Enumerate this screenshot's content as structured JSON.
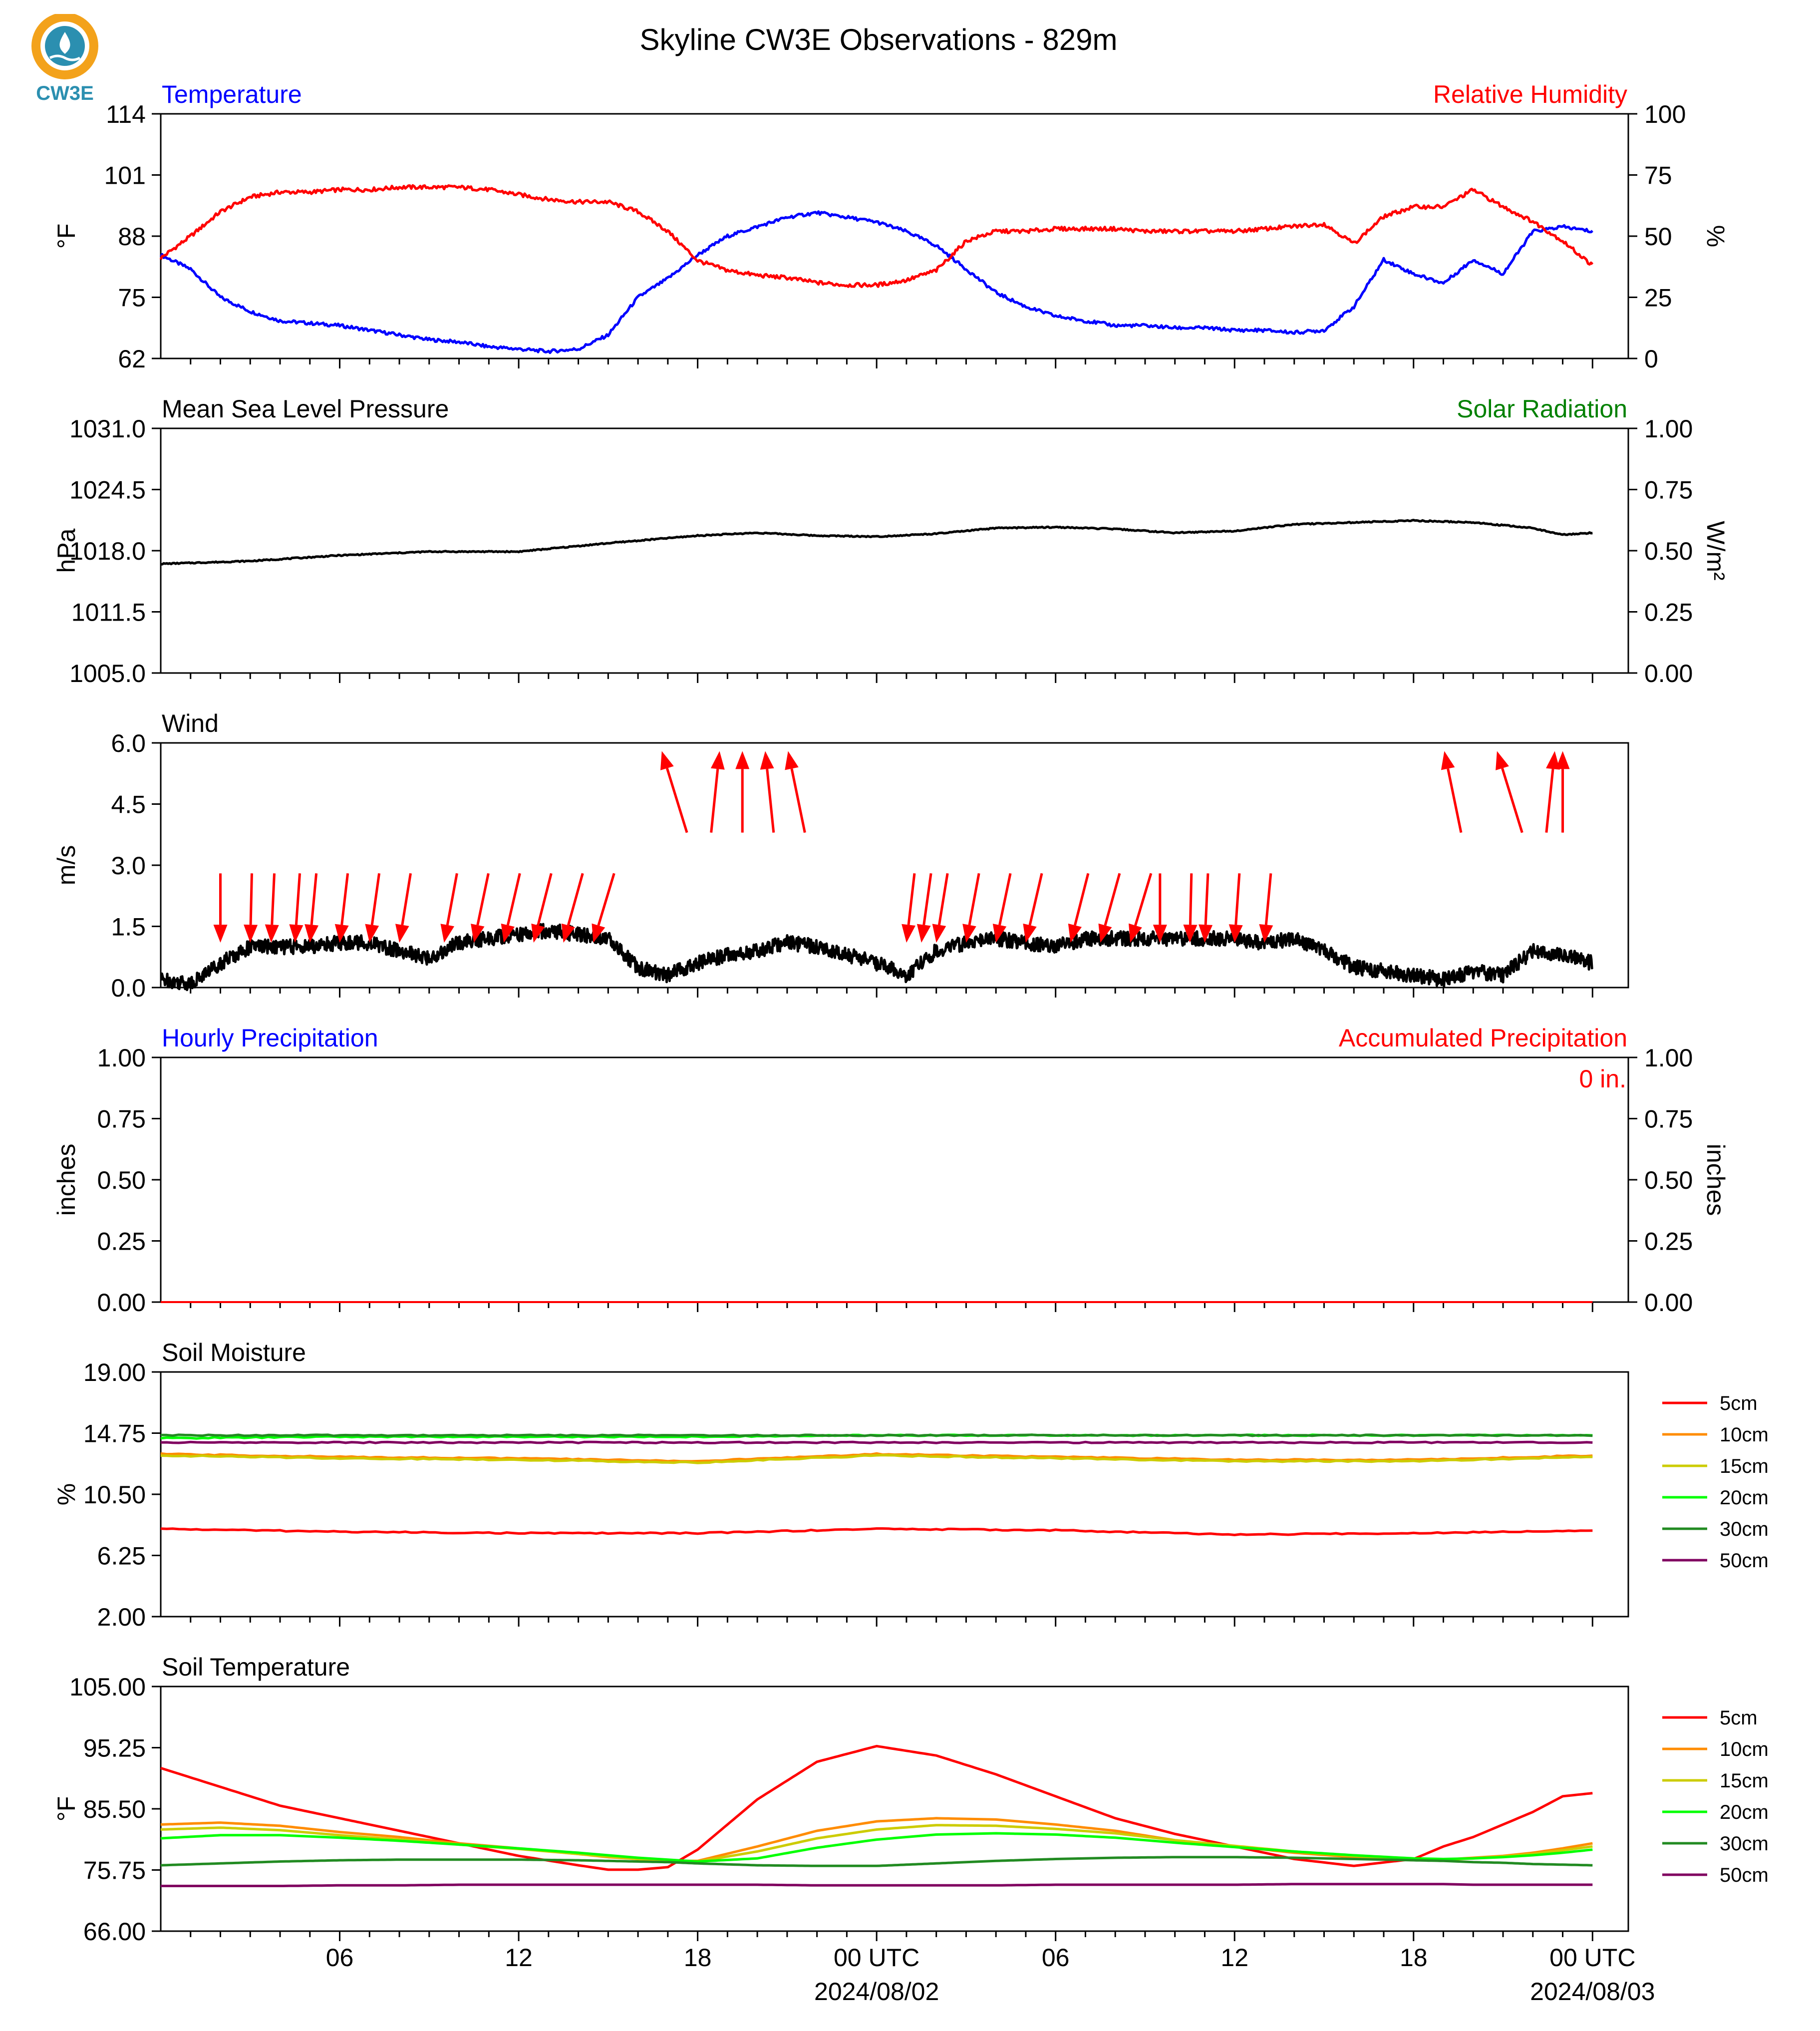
{
  "page": {
    "title": "Skyline CW3E Observations - 829m",
    "logo_text": "CW3E"
  },
  "colors": {
    "blue": "#0000ff",
    "red": "#ff0000",
    "green": "#008000",
    "black": "#000000",
    "logo_orange": "#f3a21b",
    "logo_teal": "#2b8fb0"
  },
  "time_axis": {
    "tick_labels": [
      "06",
      "12",
      "18",
      "00 UTC",
      "06",
      "12",
      "18",
      "00 UTC"
    ],
    "tick_hours": [
      6,
      12,
      18,
      24,
      30,
      36,
      42,
      48
    ],
    "date_labels": [
      "2024/08/02",
      "2024/08/03"
    ],
    "date_hours": [
      24,
      48
    ],
    "minor_tick_step_hours": 1
  },
  "chart_data": [
    {
      "type": "line",
      "panel": "temperature_rh",
      "title_left": "Temperature",
      "title_right": "Relative Humidity",
      "ylabel": "°F",
      "ylabel_right": "%",
      "ylim": [
        62,
        114
      ],
      "yticks": [
        "114",
        "101",
        "88",
        "75",
        "62"
      ],
      "ylim_right": [
        0,
        100
      ],
      "yticks_right": [
        "100",
        "75",
        "50",
        "25",
        "0"
      ],
      "x_hours": [
        0,
        1,
        2,
        3,
        4,
        5,
        6,
        7,
        8,
        9,
        10,
        11,
        12,
        13,
        14,
        15,
        16,
        17,
        18,
        19,
        20,
        21,
        22,
        23,
        24,
        25,
        26,
        27,
        28,
        29,
        30,
        31,
        32,
        33,
        34,
        35,
        36,
        37,
        38,
        39,
        40,
        41,
        42,
        43,
        44,
        45,
        46,
        47,
        48
      ],
      "series": [
        {
          "axis": "left",
          "color": "#0000ff",
          "values": [
            84,
            81,
            75,
            72,
            70,
            69.5,
            69,
            68,
            67,
            66,
            65.5,
            64.5,
            64,
            63.5,
            64,
            67,
            75,
            79,
            84,
            88,
            90,
            92,
            93,
            92,
            91,
            89,
            86,
            81,
            76,
            73,
            71,
            70,
            69,
            69,
            68.5,
            68.5,
            68,
            68,
            67.5,
            68,
            73,
            83,
            80,
            78,
            83,
            80,
            89,
            90,
            89
          ]
        },
        {
          "axis": "right",
          "color": "#ff0000",
          "values": [
            41,
            50,
            60,
            66,
            68,
            68,
            69,
            69,
            70,
            70,
            70,
            69,
            67,
            65,
            64,
            64,
            60,
            52,
            40,
            36,
            34,
            33,
            31,
            30,
            30,
            32,
            36,
            48,
            52,
            52,
            53,
            53,
            53,
            52,
            52,
            52,
            52,
            53,
            54,
            55,
            47,
            58,
            62,
            62,
            69,
            62,
            56,
            48,
            38
          ]
        }
      ]
    },
    {
      "type": "line",
      "panel": "pressure_solar",
      "title_left": "Mean Sea Level Pressure",
      "title_right": "Solar Radiation",
      "ylabel": "hPa",
      "ylabel_right": "W/m²",
      "ylim": [
        1005.0,
        1031.0
      ],
      "yticks": [
        "1031.0",
        "1024.5",
        "1018.0",
        "1011.5",
        "1005.0"
      ],
      "ylim_right": [
        0,
        1
      ],
      "yticks_right": [
        "1.00",
        "0.75",
        "0.50",
        "0.25",
        "0.00"
      ],
      "x_hours": [
        0,
        3,
        6,
        9,
        12,
        15,
        18,
        20,
        22,
        24,
        26,
        28,
        30,
        32,
        34,
        36,
        38,
        40,
        42,
        44,
        46,
        47,
        48
      ],
      "series": [
        {
          "axis": "left",
          "color": "#000000",
          "values": [
            1016.6,
            1016.9,
            1017.5,
            1017.9,
            1017.9,
            1018.8,
            1019.6,
            1019.9,
            1019.6,
            1019.5,
            1019.8,
            1020.4,
            1020.5,
            1020.3,
            1019.9,
            1020.1,
            1020.8,
            1021.0,
            1021.2,
            1021.0,
            1020.4,
            1019.7,
            1019.9
          ]
        }
      ]
    },
    {
      "type": "line",
      "panel": "wind",
      "title_left": "Wind",
      "ylabel": "m/s",
      "ylim": [
        0.0,
        6.0
      ],
      "yticks": [
        "6.0",
        "4.5",
        "3.0",
        "1.5",
        "0.0"
      ],
      "x_hours": [
        0,
        1,
        2,
        3,
        4,
        5,
        6,
        7,
        8,
        9,
        10,
        11,
        12,
        13,
        14,
        15,
        16,
        17,
        18,
        19,
        20,
        21,
        22,
        23,
        24,
        25,
        26,
        27,
        28,
        29,
        30,
        31,
        32,
        33,
        34,
        35,
        36,
        37,
        38,
        39,
        40,
        41,
        42,
        43,
        44,
        45,
        46,
        47,
        48
      ],
      "series": [
        {
          "axis": "left",
          "color": "#000000",
          "values": [
            0.2,
            0.1,
            0.6,
            1.0,
            1.0,
            1.0,
            1.1,
            1.1,
            0.9,
            0.7,
            1.1,
            1.2,
            1.3,
            1.4,
            1.3,
            1.2,
            0.5,
            0.3,
            0.6,
            0.8,
            0.9,
            1.1,
            1.0,
            0.8,
            0.6,
            0.3,
            0.9,
            1.1,
            1.2,
            1.1,
            1.0,
            1.2,
            1.2,
            1.2,
            1.2,
            1.2,
            1.2,
            1.1,
            1.2,
            0.9,
            0.5,
            0.4,
            0.3,
            0.2,
            0.4,
            0.3,
            0.9,
            0.8,
            0.6
          ]
        }
      ],
      "arrow_hours": [
        2,
        3,
        3.7,
        4.5,
        5,
        6,
        7,
        8,
        9.5,
        10.5,
        11.5,
        12.5,
        13.5,
        14.5,
        17.5,
        18.5,
        19.5,
        20.5,
        21.5,
        25,
        25.5,
        26,
        27,
        28,
        29,
        30.5,
        31.5,
        32.5,
        33.5,
        34.5,
        35,
        36,
        37,
        43.5,
        45.5,
        46.5,
        47
      ],
      "arrows": [
        {
          "group": 1,
          "dir": "down"
        },
        {
          "group": 2,
          "dir": "up"
        },
        {
          "group": 3,
          "dir": "down"
        },
        {
          "group": 4,
          "dir": "up"
        }
      ]
    },
    {
      "type": "line",
      "panel": "precipitation",
      "title_left": "Hourly Precipitation",
      "title_right": "Accumulated Precipitation",
      "annotation": "0 in.",
      "ylabel": "inches",
      "ylabel_right": "inches",
      "ylim": [
        0,
        1
      ],
      "yticks": [
        "1.00",
        "0.75",
        "0.50",
        "0.25",
        "0.00"
      ],
      "ylim_right": [
        0,
        1
      ],
      "yticks_right": [
        "1.00",
        "0.75",
        "0.50",
        "0.25",
        "0.00"
      ],
      "x_hours": [
        0,
        48
      ],
      "series": [
        {
          "axis": "left",
          "color": "#0000ff",
          "values": [
            0,
            0
          ]
        },
        {
          "axis": "right",
          "color": "#ff0000",
          "values": [
            0,
            0
          ]
        }
      ]
    },
    {
      "type": "line",
      "panel": "soil_moisture",
      "title_left": "Soil Moisture",
      "ylabel": "%",
      "ylim": [
        2.0,
        19.0
      ],
      "yticks": [
        "19.00",
        "14.75",
        "10.50",
        "6.25",
        "2.00"
      ],
      "x_hours": [
        0,
        6,
        12,
        18,
        24,
        30,
        36,
        42,
        48
      ],
      "series": [
        {
          "name": "5cm",
          "color": "#ff0000",
          "values": [
            8.1,
            7.9,
            7.8,
            7.8,
            8.1,
            8.0,
            7.7,
            7.8,
            8.0
          ]
        },
        {
          "name": "10cm",
          "color": "#ff8c00",
          "values": [
            13.3,
            13.1,
            13.0,
            12.8,
            13.3,
            13.1,
            12.9,
            12.9,
            13.2
          ]
        },
        {
          "name": "15cm",
          "color": "#cccc00",
          "values": [
            13.2,
            13.0,
            12.9,
            12.7,
            13.2,
            13.0,
            12.8,
            12.8,
            13.1
          ]
        },
        {
          "name": "20cm",
          "color": "#00ff00",
          "values": [
            14.4,
            14.5,
            14.5,
            14.5,
            14.6,
            14.6,
            14.6,
            14.6,
            14.6
          ]
        },
        {
          "name": "30cm",
          "color": "#228b22",
          "values": [
            14.6,
            14.6,
            14.6,
            14.6,
            14.6,
            14.6,
            14.6,
            14.6,
            14.6
          ]
        },
        {
          "name": "50cm",
          "color": "#800060",
          "values": [
            14.1,
            14.1,
            14.1,
            14.1,
            14.1,
            14.1,
            14.1,
            14.1,
            14.1
          ]
        }
      ]
    },
    {
      "type": "line",
      "panel": "soil_temperature",
      "title_left": "Soil Temperature",
      "ylabel": "°F",
      "ylim": [
        66.0,
        105.0
      ],
      "yticks": [
        "105.00",
        "95.25",
        "85.50",
        "75.75",
        "66.00"
      ],
      "x_hours": [
        0,
        2,
        4,
        6,
        8,
        10,
        12,
        14,
        15,
        16,
        17,
        18,
        20,
        22,
        24,
        26,
        28,
        30,
        32,
        34,
        36,
        38,
        40,
        42,
        43,
        44,
        45,
        46,
        47,
        48
      ],
      "series": [
        {
          "name": "5cm",
          "color": "#ff0000",
          "values": [
            92,
            89,
            86,
            84,
            82,
            80,
            78,
            76.5,
            75.8,
            75.8,
            76.2,
            79,
            87,
            93,
            95.5,
            94,
            91,
            87.5,
            84,
            81.5,
            79.5,
            77.5,
            76.4,
            77.5,
            79.5,
            81,
            83,
            85,
            87.5,
            88
          ]
        },
        {
          "name": "10cm",
          "color": "#ff8c00",
          "values": [
            83,
            83.3,
            82.8,
            81.8,
            81,
            80,
            79.2,
            78.3,
            77.8,
            77.5,
            77.2,
            77.2,
            79.5,
            82,
            83.5,
            84,
            83.8,
            83,
            82,
            80.5,
            79.5,
            78.5,
            77.8,
            77.3,
            77.4,
            77.7,
            78,
            78.5,
            79.2,
            80
          ]
        },
        {
          "name": "15cm",
          "color": "#cccc00",
          "values": [
            82.2,
            82.5,
            82.1,
            81.3,
            80.6,
            79.8,
            79.1,
            78.3,
            77.9,
            77.5,
            77.2,
            77.1,
            78.7,
            80.8,
            82.2,
            82.9,
            82.8,
            82.3,
            81.6,
            80.5,
            79.6,
            78.7,
            78.0,
            77.4,
            77.4,
            77.6,
            77.9,
            78.3,
            78.9,
            79.5
          ]
        },
        {
          "name": "20cm",
          "color": "#00ff00",
          "values": [
            80.8,
            81.3,
            81.3,
            80.9,
            80.4,
            79.8,
            79.2,
            78.5,
            78.1,
            77.7,
            77.4,
            77.1,
            77.6,
            79.3,
            80.6,
            81.4,
            81.6,
            81.4,
            80.9,
            80.1,
            79.4,
            78.7,
            78.1,
            77.6,
            77.5,
            77.6,
            77.8,
            78.1,
            78.5,
            79.0
          ]
        },
        {
          "name": "30cm",
          "color": "#228b22",
          "values": [
            76.5,
            76.8,
            77.1,
            77.3,
            77.4,
            77.4,
            77.4,
            77.3,
            77.2,
            77.1,
            77.0,
            76.8,
            76.5,
            76.4,
            76.4,
            76.8,
            77.2,
            77.5,
            77.7,
            77.8,
            77.8,
            77.7,
            77.5,
            77.3,
            77.2,
            77.0,
            76.9,
            76.7,
            76.6,
            76.5
          ]
        },
        {
          "name": "50cm",
          "color": "#800060",
          "values": [
            73.2,
            73.2,
            73.2,
            73.3,
            73.3,
            73.4,
            73.4,
            73.4,
            73.4,
            73.4,
            73.4,
            73.4,
            73.4,
            73.3,
            73.3,
            73.3,
            73.3,
            73.4,
            73.4,
            73.4,
            73.4,
            73.5,
            73.5,
            73.5,
            73.5,
            73.4,
            73.4,
            73.4,
            73.4,
            73.4
          ]
        }
      ]
    }
  ]
}
